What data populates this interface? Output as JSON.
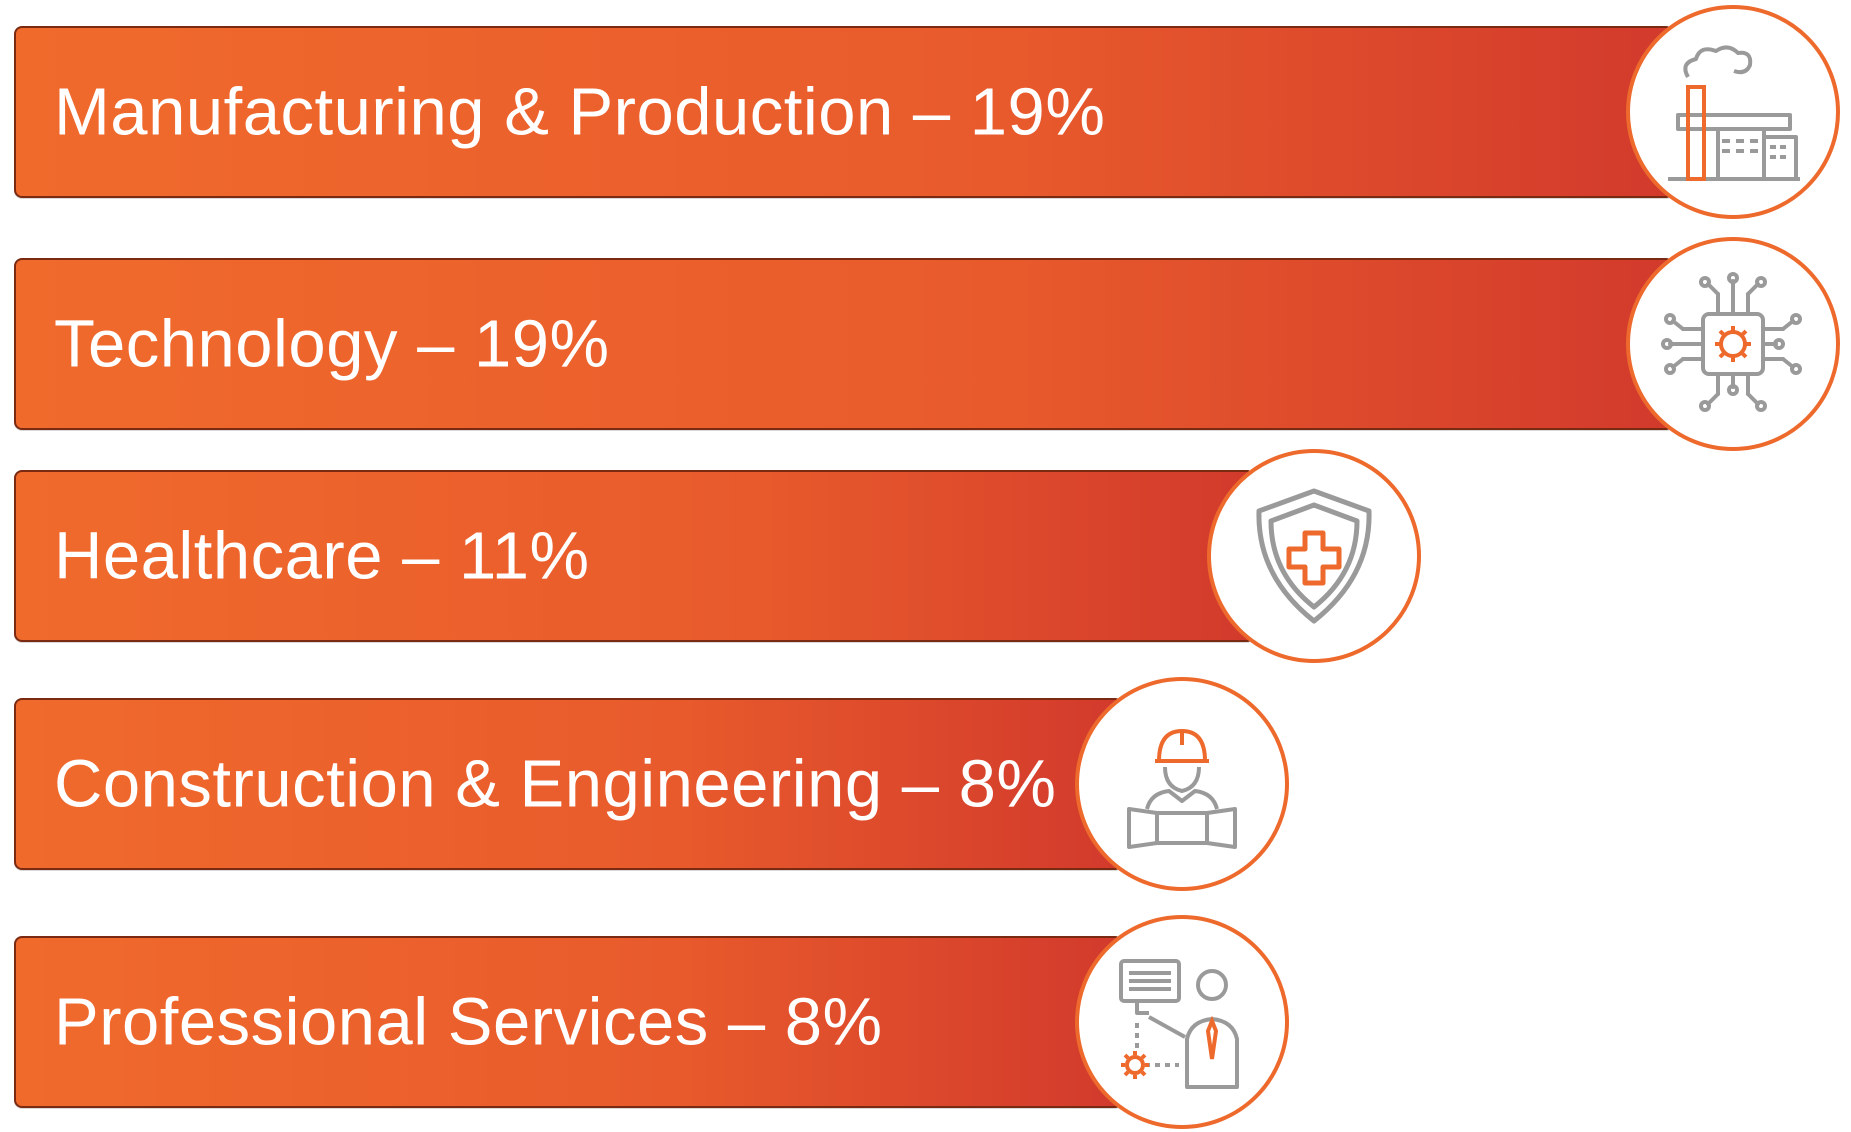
{
  "chart_data": {
    "type": "bar",
    "orientation": "horizontal",
    "categories": [
      "Manufacturing & Production",
      "Technology",
      "Healthcare",
      "Construction & Engineering",
      "Professional Services"
    ],
    "values": [
      19,
      19,
      11,
      8,
      8
    ],
    "unit": "%",
    "labels": [
      "Manufacturing & Production – 19%",
      "Technology – 19%",
      "Healthcare – 11%",
      "Construction & Engineering – 8%",
      "Professional Services – 8%"
    ],
    "icons": [
      "factory-icon",
      "circuit-chip-icon",
      "medical-shield-icon",
      "construction-worker-icon",
      "business-consultant-icon"
    ],
    "grid": false,
    "legend": "none"
  },
  "colors": {
    "bar_start": "#f06a2c",
    "bar_end": "#d23a2c",
    "accent": "#ee6a2c",
    "icon_gray": "#9a9a9a",
    "text": "#ffffff"
  }
}
